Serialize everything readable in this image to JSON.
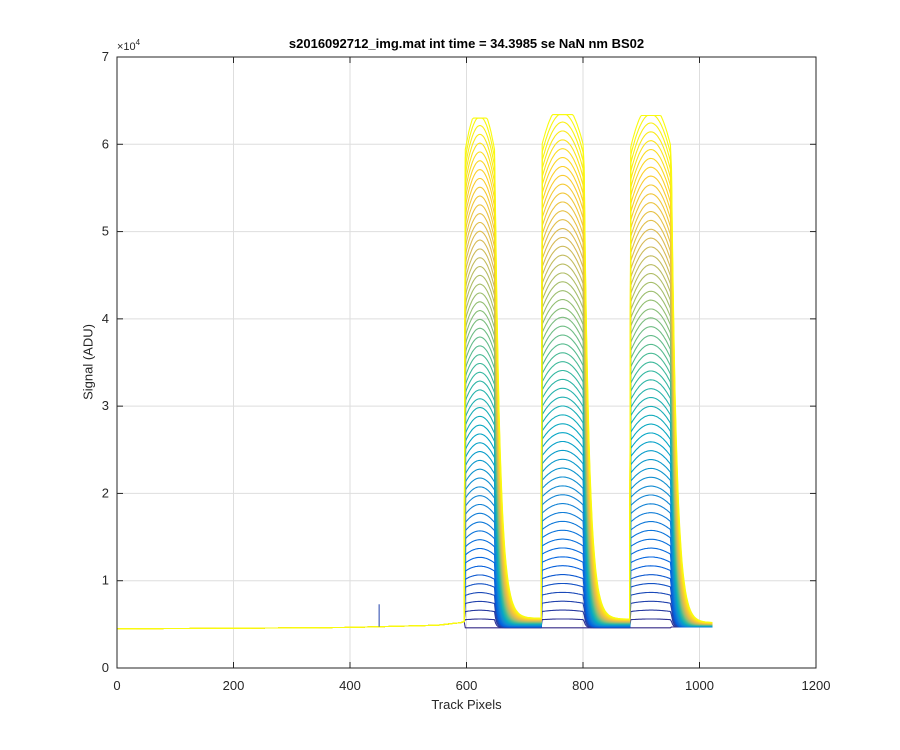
{
  "chart_data": {
    "type": "line",
    "title": "s2016092712_img.mat int time = 34.3985 se  NaN nm BS02",
    "xlabel": "Track Pixels",
    "ylabel": "Signal (ADU)",
    "xlim": [
      0,
      1200
    ],
    "ylim": [
      0,
      70000
    ],
    "xticks": [
      0,
      200,
      400,
      600,
      800,
      1000,
      1200
    ],
    "yticks": [
      0,
      10000,
      20000,
      30000,
      40000,
      50000,
      60000,
      70000
    ],
    "xtick_labels": [
      "0",
      "200",
      "400",
      "600",
      "800",
      "1000",
      "1200"
    ],
    "ytick_labels": [
      "0",
      "1",
      "2",
      "3",
      "4",
      "5",
      "6",
      "7"
    ],
    "y_exponent_label": "×10",
    "y_exponent": "4",
    "grid": true,
    "colormap": "parula",
    "colormap_colors": [
      "#352a87",
      "#0363e1",
      "#1485d4",
      "#06a7c6",
      "#38b99e",
      "#92bf73",
      "#d9ba56",
      "#fcce2e",
      "#f9fb0e"
    ],
    "baseline": {
      "x": [
        0,
        200,
        400,
        550,
        590,
        600
      ],
      "y": [
        4500,
        4550,
        4650,
        4900,
        5200,
        5400
      ]
    },
    "baseline_noise_spike": {
      "x": 450,
      "y": 7300
    },
    "bands": [
      {
        "x_start": 598,
        "x_end": 648,
        "plateau": 63000,
        "trough": 5700
      },
      {
        "x_start": 729,
        "x_end": 801,
        "plateau": 63400,
        "trough": 5600
      },
      {
        "x_start": 882,
        "x_end": 951,
        "plateau": 63300,
        "trough": 5200
      }
    ],
    "tail_end": {
      "x": 1023,
      "y": 4900
    },
    "bottom_level": 4600,
    "series_count": "many overlaid rows colored by the parula colormap"
  }
}
